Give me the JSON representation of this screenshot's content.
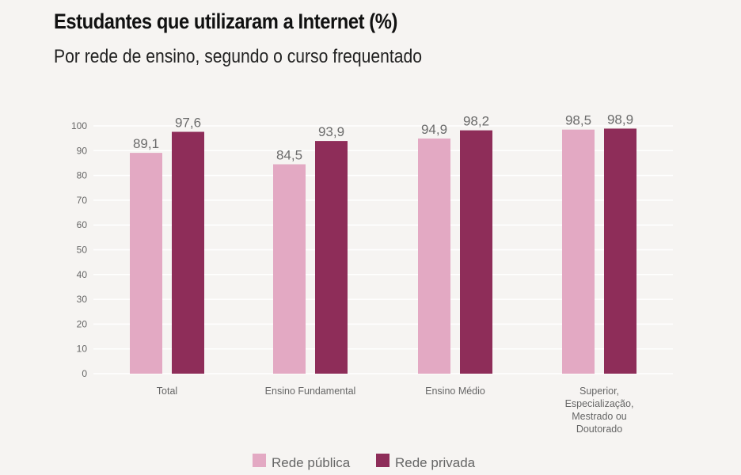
{
  "chart_data": {
    "type": "bar",
    "title": "Estudantes que utilizaram a Internet (%)",
    "subtitle": "Por rede de ensino, segundo o curso frequentado",
    "categories": [
      [
        "Total"
      ],
      [
        "Ensino Fundamental"
      ],
      [
        "Ensino Médio"
      ],
      [
        "Superior,",
        "Especialização,",
        "Mestrado ou",
        "Doutorado"
      ]
    ],
    "series": [
      {
        "name": "Rede pública",
        "color": "#e3a9c3",
        "values": [
          89.1,
          84.5,
          94.9,
          98.5
        ],
        "labels": [
          "89,1",
          "84,5",
          "94,9",
          "98,5"
        ]
      },
      {
        "name": "Rede privada",
        "color": "#8e2d59",
        "values": [
          97.6,
          93.9,
          98.2,
          98.9
        ],
        "labels": [
          "97,6",
          "93,9",
          "98,2",
          "98,9"
        ]
      }
    ],
    "ylim": [
      0,
      100
    ],
    "yticks": [
      0,
      10,
      20,
      30,
      40,
      50,
      60,
      70,
      80,
      90,
      100
    ],
    "grid": true,
    "gridline_color": "#ffffff",
    "background": "#f6f4f2",
    "legend_position": "bottom"
  }
}
